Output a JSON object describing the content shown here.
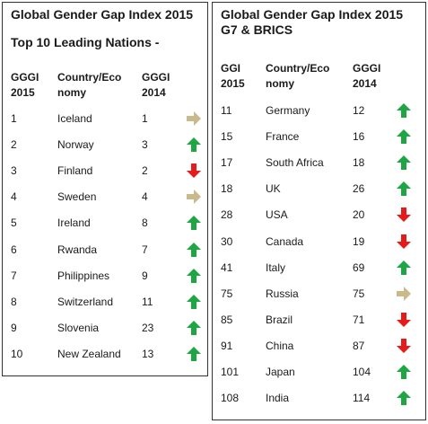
{
  "left": {
    "title_line1": "Global Gender Gap Index 2015",
    "title_line2": "Top 10 Leading Nations -",
    "headers": {
      "rank2015_l1": "GGGI",
      "rank2015_l2": "2015",
      "country_l1": "Country/Eco",
      "country_l2": "nomy",
      "rank2014_l1": "GGGI",
      "rank2014_l2": "2014"
    },
    "rows": [
      {
        "r2015": "1",
        "country": "Iceland",
        "r2014": "1",
        "trend": "same"
      },
      {
        "r2015": "2",
        "country": "Norway",
        "r2014": "3",
        "trend": "up"
      },
      {
        "r2015": "3",
        "country": "Finland",
        "r2014": "2",
        "trend": "down"
      },
      {
        "r2015": "4",
        "country": "Sweden",
        "r2014": "4",
        "trend": "same"
      },
      {
        "r2015": "5",
        "country": "Ireland",
        "r2014": "8",
        "trend": "up"
      },
      {
        "r2015": "6",
        "country": "Rwanda",
        "r2014": "7",
        "trend": "up"
      },
      {
        "r2015": "7",
        "country": "Philippines",
        "r2014": "9",
        "trend": "up"
      },
      {
        "r2015": "8",
        "country": "Switzerland",
        "r2014": "11",
        "trend": "up"
      },
      {
        "r2015": "9",
        "country": "Slovenia",
        "r2014": "23",
        "trend": "up"
      },
      {
        "r2015": "10",
        "country": "New Zealand",
        "r2014": "13",
        "trend": "up"
      }
    ]
  },
  "right": {
    "title_line1": "Global Gender Gap Index 2015",
    "title_line2": "G7 & BRICS",
    "headers": {
      "rank2015_l1": "GGI",
      "rank2015_l2": "2015",
      "country_l1": "Country/Eco",
      "country_l2": "nomy",
      "rank2014_l1": "GGGI",
      "rank2014_l2": "2014"
    },
    "rows": [
      {
        "r2015": "11",
        "country": "Germany",
        "r2014": "12",
        "trend": "up"
      },
      {
        "r2015": "15",
        "country": "France",
        "r2014": "16",
        "trend": "up"
      },
      {
        "r2015": "17",
        "country": "South Africa",
        "r2014": "18",
        "trend": "up"
      },
      {
        "r2015": "18",
        "country": "UK",
        "r2014": "26",
        "trend": "up"
      },
      {
        "r2015": "28",
        "country": "USA",
        "r2014": "20",
        "trend": "down"
      },
      {
        "r2015": "30",
        "country": "Canada",
        "r2014": "19",
        "trend": "down"
      },
      {
        "r2015": "41",
        "country": "Italy",
        "r2014": "69",
        "trend": "up"
      },
      {
        "r2015": "75",
        "country": "Russia",
        "r2014": "75",
        "trend": "same"
      },
      {
        "r2015": "85",
        "country": "Brazil",
        "r2014": "71",
        "trend": "down"
      },
      {
        "r2015": "91",
        "country": "China",
        "r2014": "87",
        "trend": "down"
      },
      {
        "r2015": "101",
        "country": "Japan",
        "r2014": "104",
        "trend": "up"
      },
      {
        "r2015": "108",
        "country": "India",
        "r2014": "114",
        "trend": "up"
      }
    ]
  },
  "colors": {
    "up": "#1fa644",
    "down": "#e51a1a",
    "same": "#c9b98c"
  },
  "icons": {
    "up": "arrow-up-icon",
    "down": "arrow-down-icon",
    "same": "arrow-right-icon"
  }
}
